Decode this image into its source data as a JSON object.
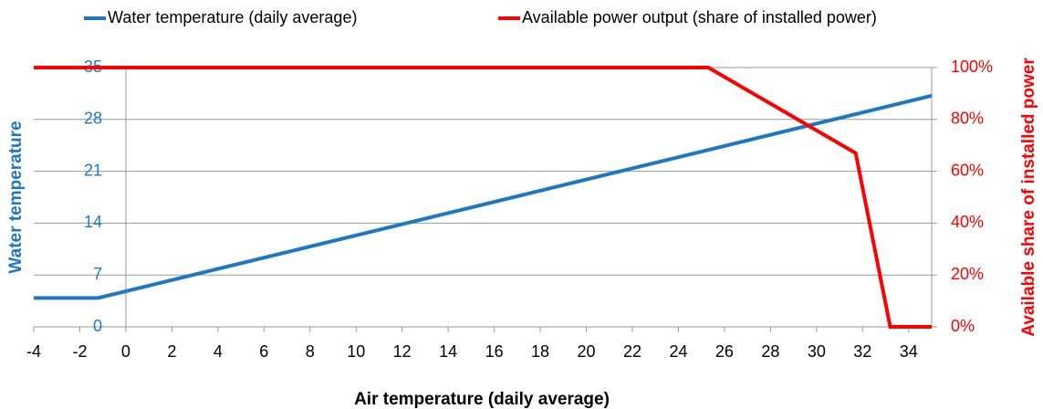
{
  "chart_data": {
    "type": "line",
    "x_label": "Air temperature (daily average)",
    "y_label": "Water temperature",
    "y2_label": "Available share of installed power",
    "xlim": [
      -4,
      35
    ],
    "xticks": [
      -4,
      -2,
      0,
      2,
      4,
      6,
      8,
      10,
      12,
      14,
      16,
      18,
      20,
      22,
      24,
      26,
      28,
      30,
      32,
      34
    ],
    "ylim": [
      0,
      35
    ],
    "yticks": [
      0,
      7,
      14,
      21,
      28,
      35
    ],
    "y2lim": [
      0,
      100
    ],
    "y2ticks": [
      {
        "value": 0,
        "label": "0%"
      },
      {
        "value": 20,
        "label": "20%"
      },
      {
        "value": 40,
        "label": "40%"
      },
      {
        "value": 60,
        "label": "60%"
      },
      {
        "value": 80,
        "label": "80%"
      },
      {
        "value": 100,
        "label": "100%"
      }
    ],
    "grid": true,
    "legend": "top",
    "series": [
      {
        "name": "Water temperature (daily average)",
        "color": "#1f77c4",
        "x": [
          -4,
          -1.2,
          35
        ],
        "values": [
          3.9,
          3.9,
          31.2
        ]
      },
      {
        "name": "Available power output (share of installed power)",
        "color": "#ff0000",
        "axis": "y2",
        "x": [
          -4,
          25.3,
          31.7,
          33.2,
          35
        ],
        "values": [
          100,
          100,
          67,
          0,
          0
        ]
      }
    ]
  }
}
